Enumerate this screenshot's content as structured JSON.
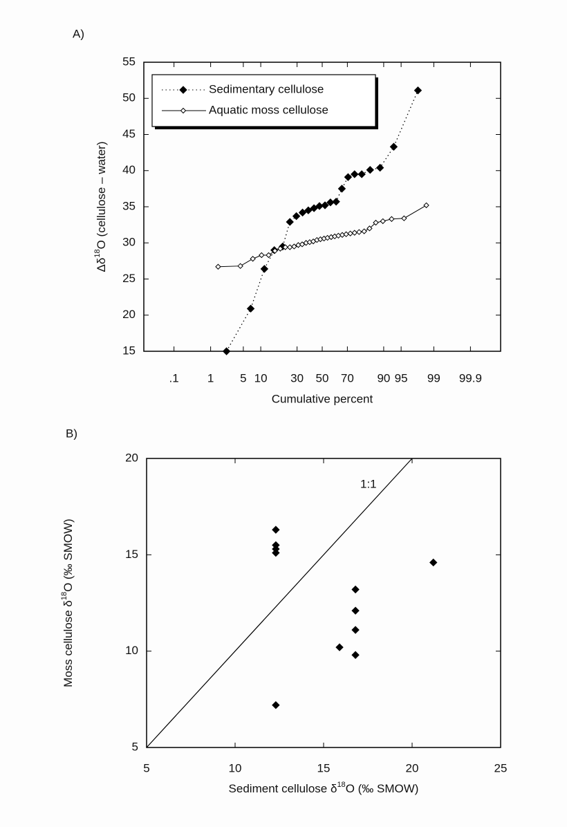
{
  "chart_data": [
    {
      "type": "line",
      "label": "A)",
      "xlabel": "Cumulative percent",
      "ylabel": [
        "Δδ",
        "18",
        "O (cellulose – water)"
      ],
      "xscale": "probability",
      "xlim": [
        0.01,
        99.99
      ],
      "xticks": [
        {
          "value": 0.1,
          "label": ".1"
        },
        1,
        5,
        10,
        30,
        50,
        70,
        90,
        95,
        99,
        99.9
      ],
      "ylim": [
        15,
        55
      ],
      "yticks": [
        15,
        20,
        25,
        30,
        35,
        40,
        45,
        50,
        55
      ],
      "legend": "upper left",
      "series": [
        {
          "name": "Sedimentary cellulose",
          "color": "#000000",
          "marker": "filled",
          "linestyle": "dotted",
          "x": [
            2.3,
            6.8,
            11.4,
            15.9,
            20.5,
            25.0,
            29.5,
            34.1,
            38.6,
            43.2,
            47.7,
            52.3,
            56.8,
            61.4,
            65.9,
            70.5,
            75.0,
            79.5,
            84.1,
            88.6,
            93.2,
            97.7
          ],
          "values": [
            15.0,
            20.9,
            26.4,
            29.0,
            29.5,
            32.9,
            33.7,
            34.2,
            34.5,
            34.8,
            35.1,
            35.2,
            35.6,
            35.7,
            37.5,
            39.1,
            39.5,
            39.5,
            40.1,
            40.4,
            43.3,
            51.1
          ]
        },
        {
          "name": "Aquatic moss cellulose",
          "color": "#000000",
          "marker": "open",
          "linestyle": "solid",
          "x": [
            1.5,
            4.4,
            7.4,
            10.3,
            13.2,
            16.2,
            19.1,
            22.1,
            25.0,
            27.9,
            30.9,
            33.8,
            36.8,
            39.7,
            42.6,
            45.6,
            48.5,
            51.5,
            54.4,
            57.4,
            60.3,
            63.2,
            66.2,
            69.1,
            72.1,
            75.0,
            77.9,
            80.9,
            83.8,
            86.8,
            89.7,
            92.6,
            95.6,
            98.5
          ],
          "values": [
            26.7,
            26.8,
            27.8,
            28.3,
            28.3,
            28.9,
            29.2,
            29.4,
            29.4,
            29.5,
            29.7,
            29.8,
            30.0,
            30.1,
            30.2,
            30.4,
            30.5,
            30.6,
            30.7,
            30.8,
            30.9,
            31.0,
            31.1,
            31.2,
            31.3,
            31.4,
            31.5,
            31.6,
            32.0,
            32.8,
            33.0,
            33.3,
            33.4,
            35.2
          ]
        }
      ]
    },
    {
      "type": "scatter",
      "label": "B)",
      "xlabel": [
        "Sediment cellulose δ",
        "18",
        "O (‰ SMOW)"
      ],
      "ylabel": [
        "Moss cellulose δ",
        "18",
        "O (‰ SMOW)"
      ],
      "xlim": [
        5,
        25
      ],
      "xticks": [
        5,
        10,
        15,
        20,
        25
      ],
      "ylim": [
        5,
        20
      ],
      "yticks": [
        5,
        10,
        15,
        20
      ],
      "reference_line": {
        "label": "1:1",
        "x": [
          5,
          20
        ],
        "values": [
          5,
          20
        ]
      },
      "series": [
        {
          "color": "#000000",
          "marker": "filled",
          "x": [
            12.3,
            12.3,
            12.3,
            12.3,
            16.8,
            16.8,
            16.8,
            15.9,
            16.8,
            21.2,
            12.3
          ],
          "values": [
            16.3,
            15.5,
            15.3,
            15.1,
            13.2,
            12.1,
            11.1,
            10.2,
            9.8,
            14.6,
            7.2
          ]
        }
      ]
    }
  ]
}
